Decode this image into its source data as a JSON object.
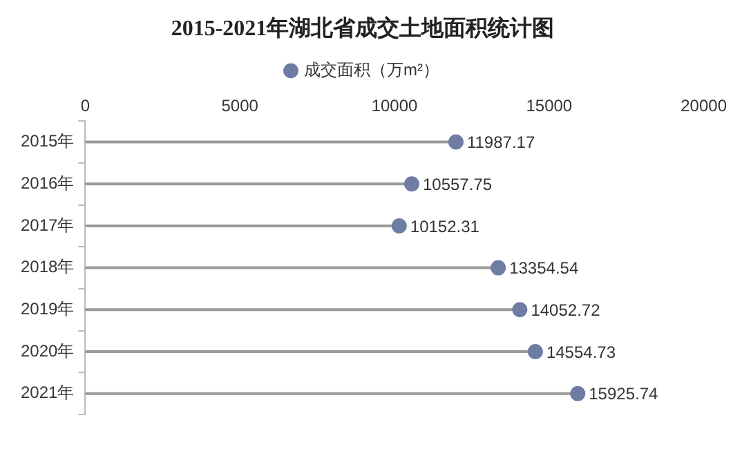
{
  "chart_data": {
    "type": "lollipop",
    "orientation": "horizontal",
    "title": "2015-2021年湖北省成交土地面积统计图",
    "categories": [
      "2015年",
      "2016年",
      "2017年",
      "2018年",
      "2019年",
      "2020年",
      "2021年"
    ],
    "series": [
      {
        "name": "成交面积（万m²）",
        "color": "#6f7ca3",
        "values": [
          11987.17,
          10557.75,
          10152.31,
          13354.54,
          14052.72,
          14554.73,
          15925.74
        ]
      }
    ],
    "xlim": [
      0,
      20000
    ],
    "xticks": [
      0,
      5000,
      10000,
      15000,
      20000
    ],
    "grid": false,
    "legend": "top",
    "marker": "circle",
    "data_labels": true
  }
}
